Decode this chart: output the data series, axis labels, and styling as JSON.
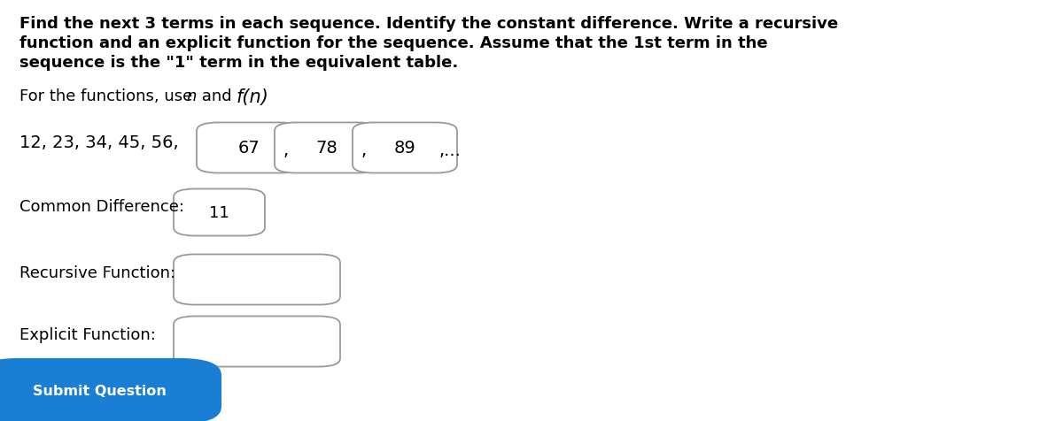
{
  "bg_color": "#ffffff",
  "title_lines": [
    "Find the next 3 terms in each sequence. Identify the constant difference. Write a recursive",
    "function and an explicit function for the sequence. Assume that the 1st term in the",
    "sequence is the \"1\" term in the equivalent table."
  ],
  "sequence_plain": "12, 23, 34, 45, 56,",
  "boxes": [
    "67",
    "78",
    "89"
  ],
  "ellipsis": ",...",
  "common_diff_label": "Common Difference:",
  "common_diff_value": "11",
  "recursive_label": "Recursive Function:",
  "explicit_label": "Explicit Function:",
  "button_text": "Submit Question",
  "button_color": "#1a7fd4",
  "button_text_color": "#ffffff",
  "box_border_color": "#999999",
  "title_fontsize": 13,
  "body_fontsize": 13,
  "sequence_fontsize": 14
}
